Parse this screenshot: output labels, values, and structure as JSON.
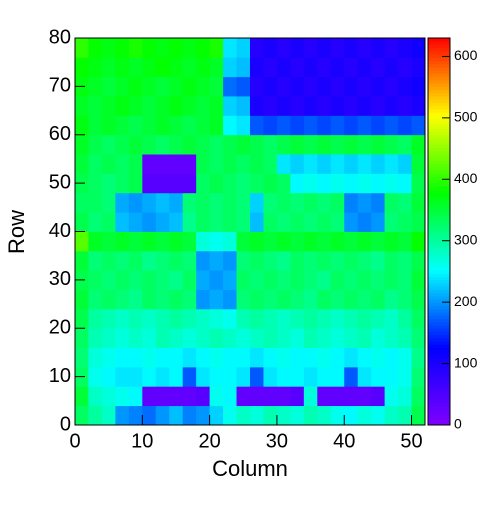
{
  "chart_data": {
    "type": "heatmap",
    "xlabel": "Column",
    "ylabel": "Row",
    "xlim": [
      0,
      52
    ],
    "ylim": [
      0,
      80
    ],
    "zlim": [
      0,
      630
    ],
    "xticks": [
      0,
      10,
      20,
      30,
      40,
      50
    ],
    "yticks": [
      0,
      10,
      20,
      30,
      40,
      50,
      60,
      70,
      80
    ],
    "zticks": [
      0,
      100,
      200,
      300,
      400,
      500,
      600
    ],
    "colorscale": [
      "#8000ff",
      "#0000ff",
      "#00ffff",
      "#00ff00",
      "#ffff00",
      "#ff0000"
    ],
    "values": [
      [
        330,
        300,
        280,
        200,
        190,
        180,
        200,
        220,
        190,
        200,
        230,
        260,
        280,
        270,
        290,
        280,
        270,
        290,
        280,
        260,
        250,
        270,
        260,
        280,
        290,
        340
      ],
      [
        350,
        280,
        270,
        260,
        250,
        30,
        30,
        30,
        30,
        40,
        260,
        250,
        30,
        30,
        30,
        30,
        40,
        270,
        30,
        30,
        30,
        30,
        40,
        260,
        270,
        330
      ],
      [
        330,
        260,
        250,
        240,
        240,
        250,
        240,
        250,
        170,
        240,
        250,
        250,
        240,
        170,
        240,
        250,
        250,
        240,
        250,
        250,
        170,
        240,
        250,
        250,
        260,
        320
      ],
      [
        320,
        270,
        260,
        250,
        250,
        260,
        250,
        250,
        240,
        250,
        260,
        250,
        250,
        240,
        250,
        260,
        250,
        250,
        260,
        250,
        240,
        250,
        260,
        250,
        260,
        310
      ],
      [
        330,
        290,
        280,
        270,
        280,
        270,
        290,
        280,
        270,
        280,
        290,
        280,
        270,
        280,
        290,
        280,
        270,
        290,
        280,
        270,
        280,
        290,
        270,
        280,
        290,
        320
      ],
      [
        340,
        300,
        290,
        280,
        290,
        280,
        290,
        300,
        290,
        280,
        270,
        260,
        290,
        300,
        290,
        280,
        290,
        300,
        290,
        280,
        290,
        300,
        290,
        280,
        300,
        330
      ],
      [
        350,
        320,
        330,
        320,
        310,
        330,
        320,
        330,
        320,
        200,
        210,
        200,
        320,
        330,
        320,
        330,
        320,
        310,
        330,
        320,
        330,
        320,
        330,
        310,
        320,
        340
      ],
      [
        340,
        330,
        320,
        330,
        320,
        330,
        320,
        310,
        330,
        210,
        200,
        210,
        330,
        320,
        330,
        320,
        330,
        320,
        310,
        330,
        320,
        330,
        320,
        330,
        320,
        350
      ],
      [
        350,
        320,
        330,
        320,
        330,
        310,
        320,
        330,
        320,
        200,
        210,
        200,
        320,
        330,
        320,
        310,
        330,
        320,
        330,
        320,
        330,
        320,
        310,
        330,
        320,
        340
      ],
      [
        420,
        360,
        350,
        360,
        350,
        360,
        350,
        360,
        350,
        270,
        260,
        270,
        350,
        360,
        350,
        360,
        350,
        360,
        350,
        360,
        350,
        360,
        350,
        360,
        350,
        380
      ],
      [
        340,
        320,
        330,
        220,
        210,
        200,
        210,
        220,
        310,
        330,
        320,
        330,
        320,
        220,
        330,
        320,
        330,
        320,
        330,
        320,
        200,
        190,
        200,
        320,
        330,
        340
      ],
      [
        330,
        330,
        320,
        210,
        200,
        210,
        220,
        210,
        320,
        330,
        320,
        330,
        320,
        230,
        320,
        330,
        320,
        330,
        320,
        330,
        190,
        200,
        190,
        330,
        320,
        350
      ],
      [
        340,
        330,
        320,
        330,
        340,
        40,
        40,
        40,
        40,
        330,
        340,
        330,
        320,
        330,
        340,
        330,
        250,
        260,
        250,
        260,
        250,
        260,
        250,
        260,
        250,
        340
      ],
      [
        350,
        330,
        340,
        330,
        340,
        30,
        30,
        30,
        30,
        340,
        330,
        340,
        330,
        340,
        330,
        240,
        230,
        240,
        230,
        240,
        230,
        240,
        230,
        240,
        230,
        350
      ],
      [
        360,
        340,
        330,
        340,
        350,
        340,
        330,
        340,
        350,
        340,
        330,
        340,
        350,
        340,
        330,
        340,
        350,
        340,
        350,
        340,
        350,
        340,
        350,
        340,
        330,
        360
      ],
      [
        370,
        350,
        360,
        350,
        340,
        350,
        360,
        350,
        340,
        350,
        360,
        250,
        240,
        170,
        160,
        170,
        160,
        170,
        160,
        170,
        160,
        170,
        160,
        170,
        160,
        170
      ],
      [
        360,
        350,
        360,
        370,
        360,
        350,
        360,
        370,
        360,
        350,
        360,
        230,
        220,
        100,
        90,
        100,
        90,
        100,
        90,
        100,
        90,
        100,
        90,
        100,
        90,
        100
      ],
      [
        370,
        360,
        350,
        360,
        370,
        360,
        350,
        360,
        370,
        360,
        350,
        180,
        170,
        90,
        100,
        90,
        100,
        90,
        100,
        90,
        100,
        90,
        100,
        90,
        100,
        110
      ],
      [
        380,
        370,
        360,
        370,
        360,
        370,
        380,
        370,
        360,
        370,
        360,
        230,
        220,
        100,
        90,
        100,
        90,
        100,
        90,
        100,
        90,
        100,
        90,
        100,
        90,
        100
      ],
      [
        400,
        380,
        370,
        380,
        390,
        380,
        370,
        380,
        370,
        380,
        390,
        240,
        230,
        90,
        100,
        90,
        100,
        90,
        100,
        90,
        100,
        90,
        100,
        90,
        100,
        110
      ]
    ]
  }
}
